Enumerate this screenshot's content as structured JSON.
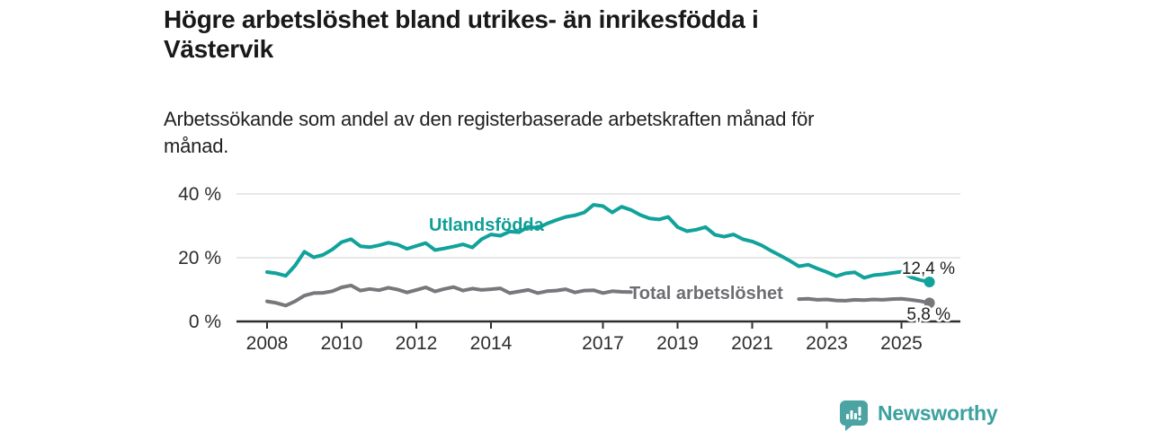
{
  "header": {
    "title_lines": [
      "Högre arbetslöshet bland utrikes- än inrikesfödda i",
      "Västervik"
    ],
    "subtitle_lines": [
      "Arbetssökande som andel av den registerbaserade arbetskraften månad för",
      "månad."
    ]
  },
  "chart_data": {
    "type": "line",
    "title": "Högre arbetslöshet bland utrikes- än inrikesfödda i Västervik",
    "subtitle": "Arbetssökande som andel av den registerbaserade arbetskraften månad för månad.",
    "unit": "percent of registered labour force",
    "grid": true,
    "legend_position": "inline-labels",
    "x_axis": {
      "ticks": [
        2008,
        2010,
        2012,
        2014,
        2017,
        2019,
        2021,
        2023,
        2025
      ],
      "range": [
        2008,
        2025.92
      ]
    },
    "y_axis": {
      "ticks": [
        {
          "value": 0,
          "label": "0 %"
        },
        {
          "value": 20,
          "label": "20 %"
        },
        {
          "value": 40,
          "label": "40 %"
        }
      ],
      "range": [
        0,
        42
      ]
    },
    "series": [
      {
        "name": "Total arbetslöshet",
        "color": "#78787c",
        "label_color": "#6d6d72",
        "end_label": "5,8 %",
        "end_value": 5.8,
        "segments": [
          [
            [
              2008.0,
              6.3
            ],
            [
              2008.25,
              5.8
            ],
            [
              2008.5,
              5.0
            ],
            [
              2008.75,
              6.3
            ],
            [
              2009.0,
              8.1
            ],
            [
              2009.25,
              8.9
            ],
            [
              2009.5,
              9.0
            ],
            [
              2009.75,
              9.5
            ],
            [
              2010.0,
              10.7
            ],
            [
              2010.25,
              11.3
            ],
            [
              2010.5,
              9.7
            ],
            [
              2010.75,
              10.2
            ],
            [
              2011.0,
              9.8
            ],
            [
              2011.25,
              10.6
            ],
            [
              2011.5,
              10.0
            ],
            [
              2011.75,
              9.1
            ],
            [
              2012.0,
              9.9
            ],
            [
              2012.25,
              10.7
            ],
            [
              2012.5,
              9.4
            ],
            [
              2012.75,
              10.2
            ],
            [
              2013.0,
              10.8
            ],
            [
              2013.25,
              9.7
            ],
            [
              2013.5,
              10.3
            ],
            [
              2013.75,
              9.9
            ],
            [
              2014.0,
              10.1
            ],
            [
              2014.25,
              10.4
            ],
            [
              2014.5,
              8.9
            ],
            [
              2014.75,
              9.4
            ],
            [
              2015.0,
              9.9
            ],
            [
              2015.25,
              8.9
            ],
            [
              2015.5,
              9.5
            ],
            [
              2015.75,
              9.7
            ],
            [
              2016.0,
              10.1
            ],
            [
              2016.25,
              9.1
            ],
            [
              2016.5,
              9.7
            ],
            [
              2016.75,
              9.8
            ],
            [
              2017.0,
              8.9
            ],
            [
              2017.25,
              9.5
            ],
            [
              2017.5,
              9.3
            ],
            [
              2017.75,
              9.2
            ]
          ],
          [
            [
              2022.25,
              7.0
            ],
            [
              2022.5,
              7.1
            ],
            [
              2022.75,
              6.8
            ],
            [
              2023.0,
              6.9
            ],
            [
              2023.25,
              6.6
            ],
            [
              2023.5,
              6.5
            ],
            [
              2023.75,
              6.8
            ],
            [
              2024.0,
              6.7
            ],
            [
              2024.25,
              6.9
            ],
            [
              2024.5,
              6.8
            ],
            [
              2024.75,
              7.0
            ],
            [
              2025.0,
              7.1
            ],
            [
              2025.25,
              6.8
            ],
            [
              2025.5,
              6.4
            ],
            [
              2025.75,
              5.8
            ]
          ]
        ]
      },
      {
        "name": "Utlandsfödda",
        "color": "#11a29b",
        "label_color": "#0f9e97",
        "end_label": "12,4 %",
        "end_value": 12.4,
        "segments": [
          [
            [
              2008.0,
              15.5
            ],
            [
              2008.25,
              15.1
            ],
            [
              2008.5,
              14.3
            ],
            [
              2008.75,
              17.5
            ],
            [
              2009.0,
              21.9
            ],
            [
              2009.25,
              20.1
            ],
            [
              2009.5,
              20.9
            ],
            [
              2009.75,
              22.6
            ],
            [
              2010.0,
              24.9
            ],
            [
              2010.25,
              25.8
            ],
            [
              2010.5,
              23.6
            ],
            [
              2010.75,
              23.3
            ],
            [
              2011.0,
              23.9
            ],
            [
              2011.25,
              24.7
            ],
            [
              2011.5,
              24.1
            ],
            [
              2011.75,
              22.8
            ],
            [
              2012.0,
              23.7
            ],
            [
              2012.25,
              24.6
            ],
            [
              2012.5,
              22.4
            ],
            [
              2012.75,
              22.9
            ],
            [
              2013.0,
              23.5
            ],
            [
              2013.25,
              24.2
            ],
            [
              2013.5,
              23.2
            ],
            [
              2013.75,
              25.8
            ],
            [
              2014.0,
              27.3
            ],
            [
              2014.25,
              26.9
            ],
            [
              2014.5,
              28.2
            ],
            [
              2014.75,
              28.0
            ],
            [
              2015.0,
              29.7
            ],
            [
              2015.25,
              29.3
            ],
            [
              2015.5,
              30.7
            ],
            [
              2015.75,
              31.8
            ],
            [
              2016.0,
              32.8
            ],
            [
              2016.25,
              33.3
            ],
            [
              2016.5,
              34.2
            ],
            [
              2016.75,
              36.6
            ],
            [
              2017.0,
              36.2
            ],
            [
              2017.25,
              34.2
            ],
            [
              2017.5,
              36.0
            ],
            [
              2017.75,
              35.0
            ],
            [
              2018.0,
              33.4
            ],
            [
              2018.25,
              32.3
            ],
            [
              2018.5,
              32.0
            ],
            [
              2018.75,
              32.8
            ],
            [
              2019.0,
              29.6
            ],
            [
              2019.25,
              28.3
            ],
            [
              2019.5,
              28.8
            ],
            [
              2019.75,
              29.6
            ],
            [
              2020.0,
              27.2
            ],
            [
              2020.25,
              26.6
            ],
            [
              2020.5,
              27.3
            ],
            [
              2020.75,
              25.8
            ],
            [
              2021.0,
              25.1
            ],
            [
              2021.25,
              23.9
            ],
            [
              2021.5,
              22.2
            ],
            [
              2021.75,
              20.7
            ],
            [
              2022.0,
              19.1
            ],
            [
              2022.25,
              17.3
            ],
            [
              2022.5,
              17.8
            ],
            [
              2022.75,
              16.6
            ],
            [
              2023.0,
              15.5
            ],
            [
              2023.25,
              14.2
            ],
            [
              2023.5,
              15.1
            ],
            [
              2023.75,
              15.4
            ],
            [
              2024.0,
              13.7
            ],
            [
              2024.25,
              14.5
            ],
            [
              2024.5,
              14.8
            ],
            [
              2024.75,
              15.2
            ],
            [
              2025.0,
              15.6
            ],
            [
              2025.25,
              13.9
            ],
            [
              2025.5,
              13.0
            ],
            [
              2025.75,
              12.4
            ]
          ]
        ]
      }
    ]
  },
  "footer": {
    "brand_name": "Newsworthy",
    "brand_color": "#3ba19f",
    "icon": "bar-chart-speech-bubble-icon"
  }
}
